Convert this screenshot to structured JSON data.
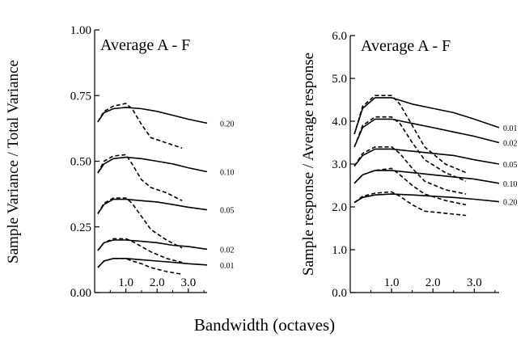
{
  "figure": {
    "xlabel": "Bandwidth (octaves)"
  },
  "chart_data": [
    {
      "type": "line",
      "title": "Average  A - F",
      "xlabel": "Bandwidth (octaves)",
      "ylabel": "Sample Variance / Total Variance",
      "xlim": [
        0,
        3.6
      ],
      "ylim": [
        0,
        1.0
      ],
      "xticks": [
        "1.0",
        "2.0",
        "3.0"
      ],
      "yticks": [
        "0.00",
        "0.25",
        "0.50",
        "0.75",
        "1.00"
      ],
      "grid": false,
      "series": [
        {
          "name": "0.20",
          "style": "solid",
          "x": [
            0.1,
            0.3,
            0.6,
            1.0,
            1.5,
            2.0,
            2.5,
            3.0,
            3.6
          ],
          "y": [
            0.65,
            0.685,
            0.7,
            0.705,
            0.7,
            0.69,
            0.675,
            0.66,
            0.645
          ]
        },
        {
          "style": "dashed",
          "x": [
            0.1,
            0.3,
            0.6,
            1.0,
            1.2,
            1.5,
            1.8,
            2.3,
            2.8
          ],
          "y": [
            0.65,
            0.69,
            0.71,
            0.72,
            0.7,
            0.64,
            0.59,
            0.57,
            0.55
          ]
        },
        {
          "name": "0.10",
          "style": "solid",
          "x": [
            0.1,
            0.3,
            0.6,
            1.0,
            1.5,
            2.0,
            2.5,
            3.0,
            3.6
          ],
          "y": [
            0.455,
            0.49,
            0.51,
            0.515,
            0.51,
            0.5,
            0.49,
            0.475,
            0.46
          ]
        },
        {
          "style": "dashed",
          "x": [
            0.1,
            0.3,
            0.6,
            1.0,
            1.2,
            1.5,
            1.8,
            2.3,
            2.8
          ],
          "y": [
            0.455,
            0.5,
            0.52,
            0.525,
            0.49,
            0.43,
            0.4,
            0.38,
            0.35
          ]
        },
        {
          "name": "0.05",
          "style": "solid",
          "x": [
            0.1,
            0.3,
            0.6,
            1.0,
            1.5,
            2.0,
            2.5,
            3.0,
            3.6
          ],
          "y": [
            0.3,
            0.335,
            0.355,
            0.355,
            0.35,
            0.345,
            0.335,
            0.325,
            0.315
          ]
        },
        {
          "style": "dashed",
          "x": [
            0.1,
            0.3,
            0.6,
            1.0,
            1.2,
            1.5,
            1.8,
            2.3,
            2.8
          ],
          "y": [
            0.3,
            0.34,
            0.36,
            0.36,
            0.34,
            0.29,
            0.24,
            0.2,
            0.17
          ]
        },
        {
          "name": "0.02",
          "style": "solid",
          "x": [
            0.1,
            0.3,
            0.6,
            1.0,
            1.5,
            2.0,
            2.5,
            3.0,
            3.6
          ],
          "y": [
            0.16,
            0.19,
            0.2,
            0.2,
            0.195,
            0.19,
            0.18,
            0.175,
            0.165
          ]
        },
        {
          "style": "dashed",
          "x": [
            0.1,
            0.3,
            0.6,
            1.0,
            1.2,
            1.5,
            1.8,
            2.3,
            2.8
          ],
          "y": [
            0.16,
            0.19,
            0.205,
            0.205,
            0.195,
            0.175,
            0.155,
            0.13,
            0.115
          ]
        },
        {
          "name": "0.01",
          "style": "solid",
          "x": [
            0.1,
            0.3,
            0.6,
            1.0,
            1.5,
            2.0,
            2.5,
            3.0,
            3.6
          ],
          "y": [
            0.095,
            0.12,
            0.13,
            0.13,
            0.125,
            0.12,
            0.115,
            0.11,
            0.105
          ]
        },
        {
          "style": "dashed",
          "x": [
            0.1,
            0.3,
            0.6,
            1.0,
            1.2,
            1.5,
            1.8,
            2.3,
            2.8
          ],
          "y": [
            0.095,
            0.12,
            0.13,
            0.13,
            0.12,
            0.11,
            0.095,
            0.08,
            0.07
          ]
        }
      ]
    },
    {
      "type": "line",
      "title": "Average  A - F",
      "xlabel": "Bandwidth (octaves)",
      "ylabel": "Sample response / Average response",
      "xlim": [
        0,
        3.6
      ],
      "ylim": [
        0,
        6.0
      ],
      "xticks": [
        "1.0",
        "2.0",
        "3.0"
      ],
      "yticks": [
        "0.0",
        "1.0",
        "2.0",
        "3.0",
        "4.0",
        "5.0",
        "6.0"
      ],
      "grid": false,
      "series": [
        {
          "name": "0.01",
          "style": "solid",
          "x": [
            0.1,
            0.3,
            0.6,
            1.0,
            1.5,
            2.0,
            2.5,
            3.0,
            3.6
          ],
          "y": [
            3.7,
            4.3,
            4.55,
            4.55,
            4.4,
            4.3,
            4.2,
            4.05,
            3.85
          ]
        },
        {
          "style": "dashed",
          "x": [
            0.1,
            0.3,
            0.6,
            1.0,
            1.2,
            1.5,
            1.8,
            2.3,
            2.8
          ],
          "y": [
            3.7,
            4.35,
            4.6,
            4.6,
            4.4,
            3.9,
            3.4,
            3.0,
            2.8
          ]
        },
        {
          "name": "0.02",
          "style": "solid",
          "x": [
            0.1,
            0.3,
            0.6,
            1.0,
            1.5,
            2.0,
            2.5,
            3.0,
            3.6
          ],
          "y": [
            3.4,
            3.85,
            4.05,
            4.05,
            3.95,
            3.85,
            3.75,
            3.65,
            3.5
          ]
        },
        {
          "style": "dashed",
          "x": [
            0.1,
            0.3,
            0.6,
            1.0,
            1.2,
            1.5,
            1.8,
            2.3,
            2.8
          ],
          "y": [
            3.4,
            3.9,
            4.1,
            4.1,
            3.95,
            3.5,
            3.1,
            2.8,
            2.6
          ]
        },
        {
          "name": "0.05",
          "style": "solid",
          "x": [
            0.1,
            0.3,
            0.6,
            1.0,
            1.5,
            2.0,
            2.5,
            3.0,
            3.6
          ],
          "y": [
            2.95,
            3.2,
            3.35,
            3.35,
            3.3,
            3.25,
            3.2,
            3.1,
            3.0
          ]
        },
        {
          "style": "dashed",
          "x": [
            0.1,
            0.3,
            0.6,
            1.0,
            1.2,
            1.5,
            1.8,
            2.3,
            2.8
          ],
          "y": [
            2.95,
            3.25,
            3.4,
            3.4,
            3.25,
            2.9,
            2.6,
            2.4,
            2.3
          ]
        },
        {
          "name": "0.10",
          "style": "solid",
          "x": [
            0.1,
            0.3,
            0.6,
            1.0,
            1.5,
            2.0,
            2.5,
            3.0,
            3.6
          ],
          "y": [
            2.55,
            2.75,
            2.85,
            2.85,
            2.8,
            2.75,
            2.7,
            2.65,
            2.55
          ]
        },
        {
          "style": "dashed",
          "x": [
            0.1,
            0.3,
            0.6,
            1.0,
            1.2,
            1.5,
            1.8,
            2.3,
            2.8
          ],
          "y": [
            2.55,
            2.75,
            2.85,
            2.9,
            2.75,
            2.5,
            2.3,
            2.15,
            2.05
          ]
        },
        {
          "name": "0.20",
          "style": "solid",
          "x": [
            0.1,
            0.3,
            0.6,
            1.0,
            1.5,
            2.0,
            2.5,
            3.0,
            3.6
          ],
          "y": [
            2.1,
            2.22,
            2.28,
            2.3,
            2.28,
            2.25,
            2.22,
            2.18,
            2.12
          ]
        },
        {
          "style": "dashed",
          "x": [
            0.1,
            0.3,
            0.6,
            1.0,
            1.2,
            1.5,
            1.8,
            2.3,
            2.8
          ],
          "y": [
            2.1,
            2.25,
            2.32,
            2.35,
            2.25,
            2.05,
            1.9,
            1.85,
            1.8
          ]
        }
      ]
    }
  ]
}
